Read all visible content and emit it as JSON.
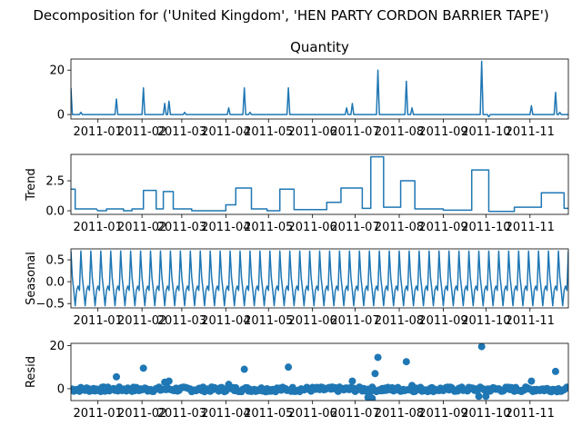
{
  "figure": {
    "suptitle": "Decomposition for ('United Kingdom', 'HEN PARTY CORDON BARRIER TAPE')"
  },
  "colors": {
    "series": "#1f77b4",
    "axis": "#000000",
    "zero_line": "#000000"
  },
  "chart_data": [
    {
      "type": "line",
      "panel": "observed",
      "title": "Quantity",
      "ylabel": "",
      "xlabel": "",
      "ylim": [
        -2,
        25
      ],
      "yticks": [
        0,
        20
      ],
      "xticks": [
        "2011-01",
        "2011-02",
        "2011-03",
        "2011-04",
        "2011-05",
        "2011-06",
        "2011-07",
        "2011-08",
        "2011-09",
        "2011-10",
        "2011-11"
      ],
      "x_range": [
        "2010-12-13",
        "2011-11-28"
      ],
      "spikes": [
        {
          "x": "2010-12-13",
          "y": 12
        },
        {
          "x": "2010-12-20",
          "y": 1
        },
        {
          "x": "2011-01-14",
          "y": 7
        },
        {
          "x": "2011-02-02",
          "y": 12
        },
        {
          "x": "2011-02-17",
          "y": 5
        },
        {
          "x": "2011-02-20",
          "y": 6
        },
        {
          "x": "2011-03-03",
          "y": 1
        },
        {
          "x": "2011-04-03",
          "y": 3
        },
        {
          "x": "2011-04-14",
          "y": 12
        },
        {
          "x": "2011-04-18",
          "y": 1
        },
        {
          "x": "2011-05-15",
          "y": 12
        },
        {
          "x": "2011-06-25",
          "y": 3
        },
        {
          "x": "2011-06-29",
          "y": 5
        },
        {
          "x": "2011-07-17",
          "y": 20
        },
        {
          "x": "2011-08-06",
          "y": 15
        },
        {
          "x": "2011-08-10",
          "y": 3
        },
        {
          "x": "2011-09-28",
          "y": 24
        },
        {
          "x": "2011-10-03",
          "y": -1
        },
        {
          "x": "2011-11-02",
          "y": 4
        },
        {
          "x": "2011-11-19",
          "y": 10
        },
        {
          "x": "2011-11-22",
          "y": 1
        }
      ]
    },
    {
      "type": "line",
      "panel": "trend",
      "title": "",
      "ylabel": "Trend",
      "xlabel": "",
      "ylim": [
        -0.3,
        4.7
      ],
      "yticks": [
        0.0,
        2.5
      ],
      "ytick_labels": [
        "0.0",
        "2.5"
      ],
      "segments": [
        {
          "start": "2010-12-13",
          "end": "2010-12-15",
          "y": 1.8
        },
        {
          "start": "2010-12-16",
          "end": "2010-12-30",
          "y": 0.15
        },
        {
          "start": "2011-01-01",
          "end": "2011-01-06",
          "y": 0.0
        },
        {
          "start": "2011-01-07",
          "end": "2011-01-18",
          "y": 0.15
        },
        {
          "start": "2011-01-19",
          "end": "2011-01-24",
          "y": 0.0
        },
        {
          "start": "2011-01-25",
          "end": "2011-02-01",
          "y": 0.15
        },
        {
          "start": "2011-02-02",
          "end": "2011-02-10",
          "y": 1.7
        },
        {
          "start": "2011-02-11",
          "end": "2011-02-15",
          "y": 0.15
        },
        {
          "start": "2011-02-16",
          "end": "2011-02-22",
          "y": 1.6
        },
        {
          "start": "2011-02-23",
          "end": "2011-03-07",
          "y": 0.15
        },
        {
          "start": "2011-03-08",
          "end": "2011-03-31",
          "y": 0.0
        },
        {
          "start": "2011-04-01",
          "end": "2011-04-07",
          "y": 0.5
        },
        {
          "start": "2011-04-08",
          "end": "2011-04-18",
          "y": 1.9
        },
        {
          "start": "2011-04-19",
          "end": "2011-04-29",
          "y": 0.15
        },
        {
          "start": "2011-04-30",
          "end": "2011-05-08",
          "y": 0.0
        },
        {
          "start": "2011-05-09",
          "end": "2011-05-18",
          "y": 1.8
        },
        {
          "start": "2011-05-19",
          "end": "2011-06-10",
          "y": 0.1
        },
        {
          "start": "2011-06-11",
          "end": "2011-06-20",
          "y": 0.7
        },
        {
          "start": "2011-06-21",
          "end": "2011-07-05",
          "y": 1.9
        },
        {
          "start": "2011-07-06",
          "end": "2011-07-11",
          "y": 0.2
        },
        {
          "start": "2011-07-12",
          "end": "2011-07-20",
          "y": 4.5
        },
        {
          "start": "2011-07-21",
          "end": "2011-08-01",
          "y": 0.3
        },
        {
          "start": "2011-08-02",
          "end": "2011-08-11",
          "y": 2.5
        },
        {
          "start": "2011-08-12",
          "end": "2011-08-31",
          "y": 0.15
        },
        {
          "start": "2011-09-01",
          "end": "2011-09-20",
          "y": 0.05
        },
        {
          "start": "2011-09-21",
          "end": "2011-10-02",
          "y": 3.4
        },
        {
          "start": "2011-10-03",
          "end": "2011-10-20",
          "y": -0.05
        },
        {
          "start": "2011-10-21",
          "end": "2011-11-08",
          "y": 0.3
        },
        {
          "start": "2011-11-09",
          "end": "2011-11-24",
          "y": 1.5
        },
        {
          "start": "2011-11-25",
          "end": "2011-11-28",
          "y": 0.2
        }
      ]
    },
    {
      "type": "line",
      "panel": "seasonal",
      "title": "",
      "ylabel": "Seasonal",
      "xlabel": "",
      "ylim": [
        -0.6,
        0.75
      ],
      "yticks": [
        -0.5,
        0.0,
        0.5
      ],
      "ytick_labels": [
        "−0.5",
        "0.0",
        "0.5"
      ],
      "period_days": 7,
      "pattern": [
        0.7,
        0.1,
        -0.2,
        -0.55,
        -0.2,
        -0.1,
        -0.2
      ]
    },
    {
      "type": "scatter",
      "panel": "resid",
      "title": "",
      "ylabel": "Resid",
      "xlabel": "",
      "ylim": [
        -5.5,
        21
      ],
      "yticks": [
        0,
        20
      ],
      "outliers": [
        {
          "x": "2011-01-14",
          "y": 5.5
        },
        {
          "x": "2011-02-02",
          "y": 9.5
        },
        {
          "x": "2011-02-17",
          "y": 3.0
        },
        {
          "x": "2011-02-20",
          "y": 3.5
        },
        {
          "x": "2011-04-03",
          "y": 2.0
        },
        {
          "x": "2011-04-14",
          "y": 9.0
        },
        {
          "x": "2011-05-15",
          "y": 10.0
        },
        {
          "x": "2011-06-29",
          "y": 3.5
        },
        {
          "x": "2011-07-15",
          "y": 7.0
        },
        {
          "x": "2011-07-17",
          "y": 14.5
        },
        {
          "x": "2011-08-06",
          "y": 12.5
        },
        {
          "x": "2011-08-10",
          "y": 1.5
        },
        {
          "x": "2011-09-28",
          "y": 19.5
        },
        {
          "x": "2011-11-02",
          "y": 3.5
        },
        {
          "x": "2011-11-19",
          "y": 8.0
        }
      ]
    }
  ]
}
